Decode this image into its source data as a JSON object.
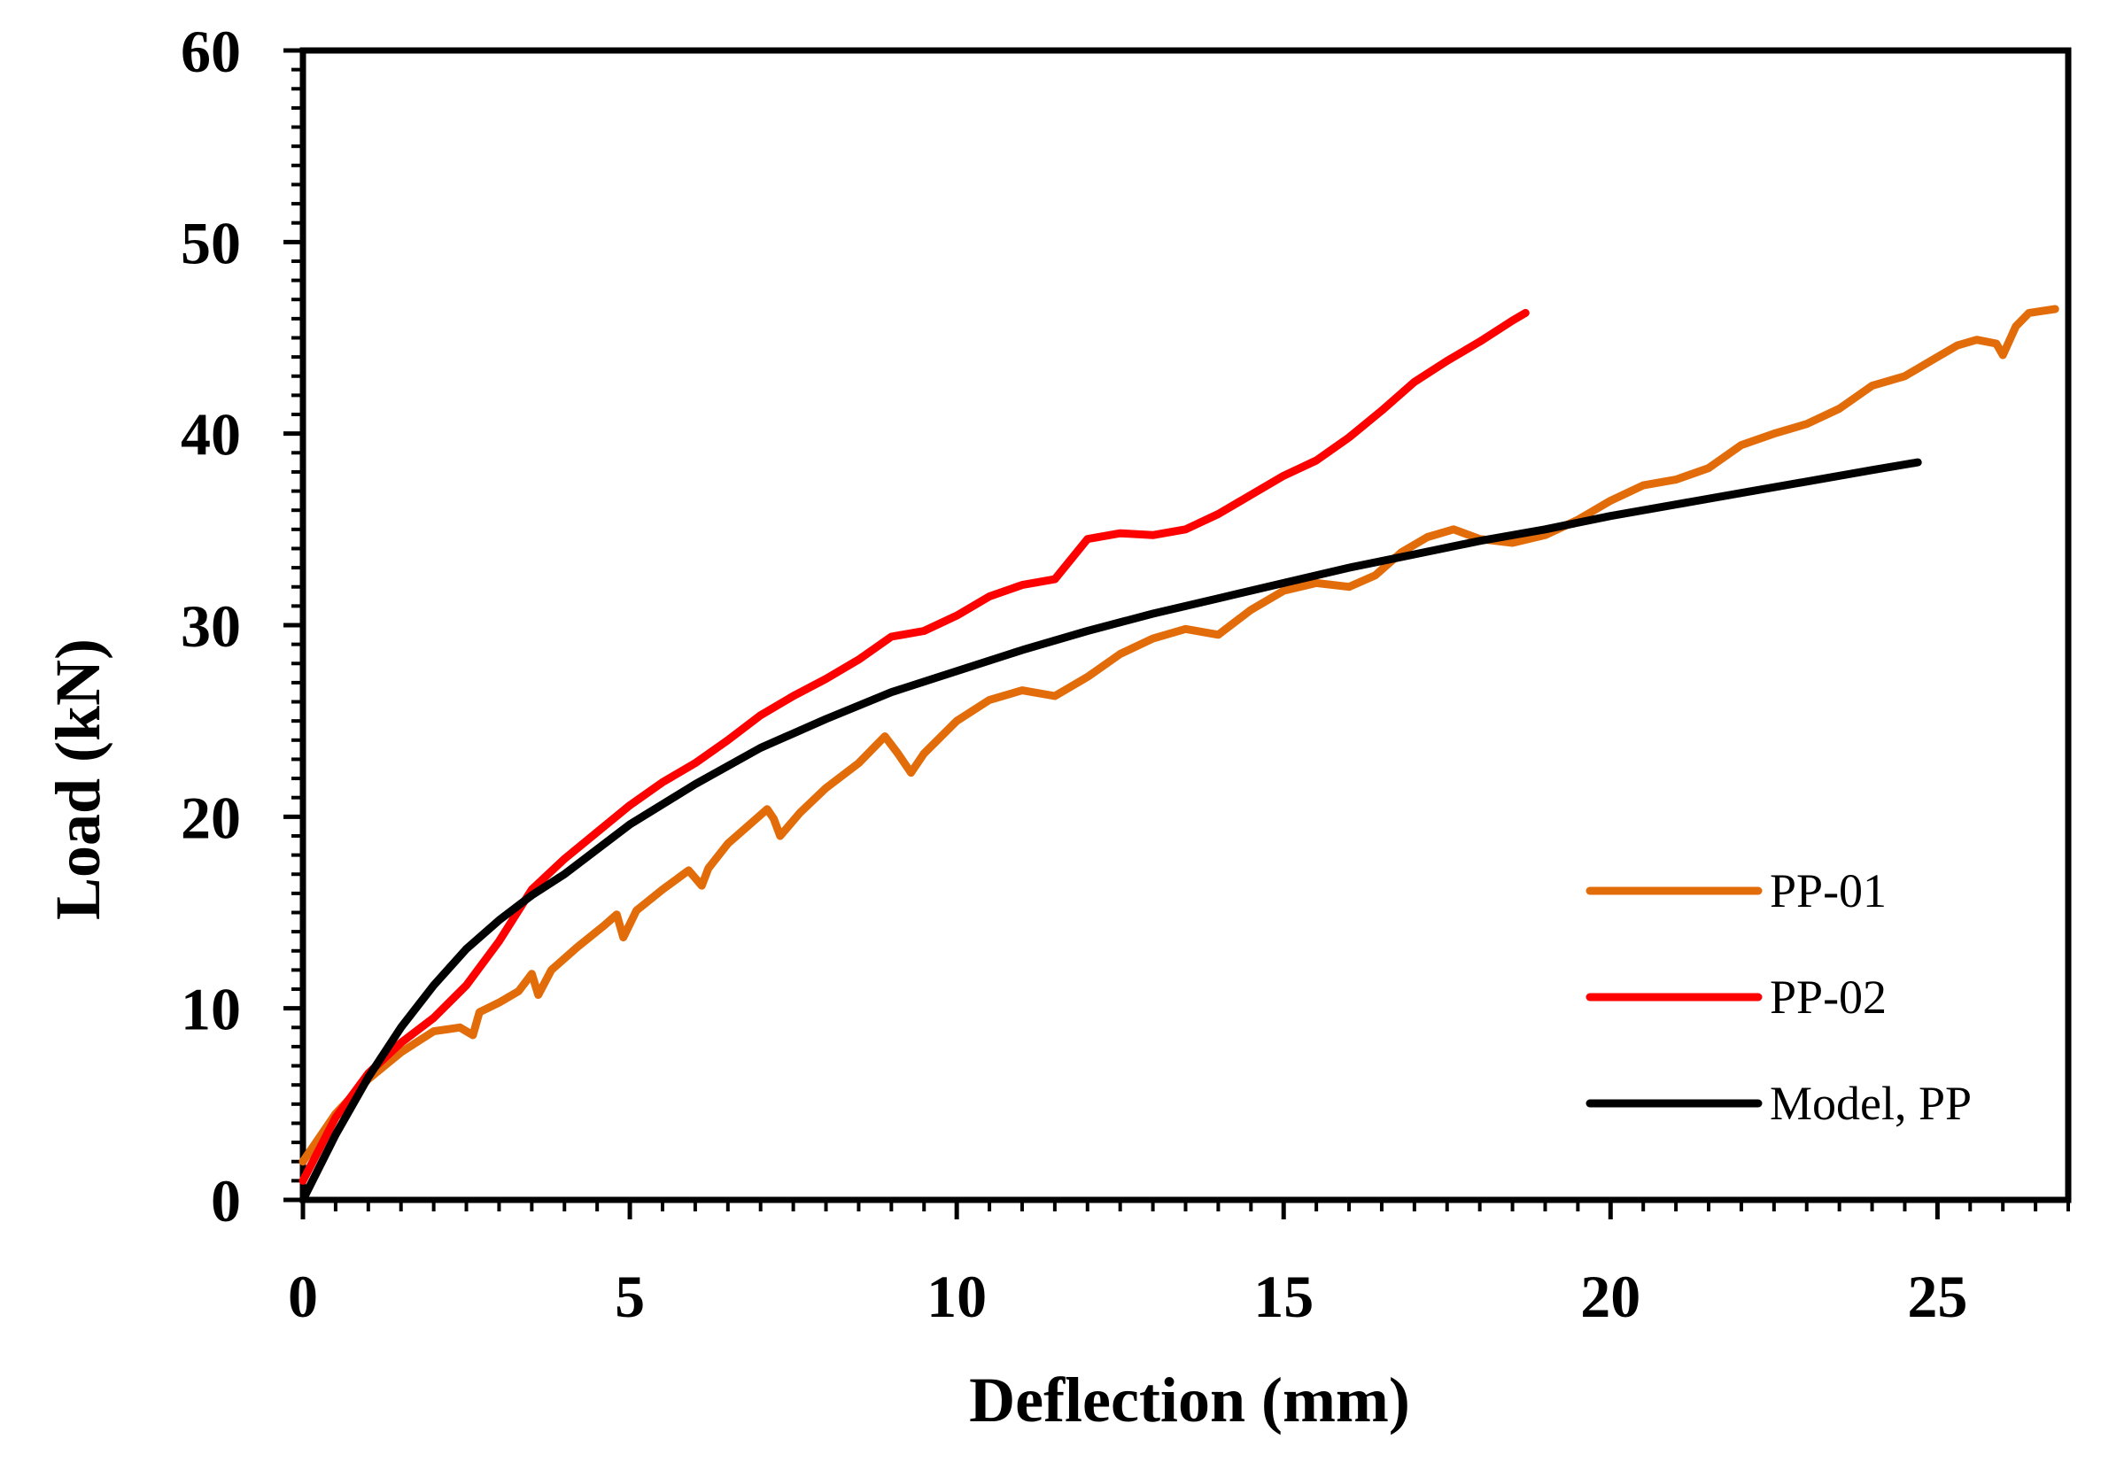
{
  "chart_data": {
    "type": "line",
    "title": "",
    "xlabel": "Deflection (mm)",
    "ylabel": "Load (kN)",
    "xlim": [
      0,
      27
    ],
    "ylim": [
      0,
      60
    ],
    "xticks": [
      0,
      5,
      10,
      15,
      20,
      25
    ],
    "yticks": [
      0,
      10,
      20,
      30,
      40,
      50,
      60
    ],
    "x_minor_step": 0.5,
    "y_minor_step": 1,
    "grid": false,
    "legend_position": "right, lower-middle",
    "series": [
      {
        "name": "PP-01",
        "color": "#E36C0A",
        "x": [
          0,
          0.5,
          1,
          1.5,
          2,
          2.4,
          2.6,
          2.7,
          3,
          3.3,
          3.5,
          3.6,
          3.8,
          4.2,
          4.6,
          4.8,
          4.9,
          5.1,
          5.5,
          5.9,
          6.1,
          6.2,
          6.5,
          6.9,
          7.1,
          7.2,
          7.3,
          7.6,
          8,
          8.5,
          8.9,
          9.1,
          9.3,
          9.5,
          10,
          10.5,
          11,
          11.5,
          12,
          12.5,
          13,
          13.5,
          14,
          14.5,
          15,
          15.5,
          16,
          16.4,
          16.8,
          17.2,
          17.6,
          18,
          18.5,
          19,
          19.5,
          20,
          20.5,
          21,
          21.5,
          22,
          22.5,
          23,
          23.5,
          24,
          24.5,
          25,
          25.3,
          25.6,
          25.9,
          26,
          26.2,
          26.4,
          26.6,
          26.8
        ],
        "y": [
          2,
          4.5,
          6.3,
          7.7,
          8.8,
          9,
          8.6,
          9.8,
          10.3,
          10.9,
          11.8,
          10.7,
          12,
          13.2,
          14.3,
          14.9,
          13.7,
          15.1,
          16.2,
          17.2,
          16.4,
          17.3,
          18.6,
          19.8,
          20.4,
          19.9,
          19,
          20.2,
          21.5,
          22.8,
          24.2,
          23.3,
          22.3,
          23.3,
          25,
          26.1,
          26.6,
          26.3,
          27.3,
          28.5,
          29.3,
          29.8,
          29.5,
          30.8,
          31.8,
          32.2,
          32,
          32.6,
          33.8,
          34.6,
          35,
          34.5,
          34.3,
          34.7,
          35.5,
          36.5,
          37.3,
          37.6,
          38.2,
          39.4,
          40,
          40.5,
          41.3,
          42.5,
          43,
          44,
          44.6,
          44.9,
          44.7,
          44.1,
          45.6,
          46.3,
          46.4,
          46.5
        ]
      },
      {
        "name": "PP-02",
        "color": "#FF0000",
        "x": [
          0,
          0.5,
          1,
          1.5,
          2,
          2.5,
          3,
          3.5,
          4,
          4.5,
          5,
          5.5,
          6,
          6.5,
          7,
          7.5,
          8,
          8.5,
          9,
          9.5,
          10,
          10.5,
          11,
          11.5,
          12,
          12.5,
          13,
          13.5,
          14,
          14.5,
          15,
          15.5,
          16,
          16.5,
          17,
          17.5,
          18,
          18.5,
          18.7
        ],
        "y": [
          1,
          4.3,
          6.6,
          8.2,
          9.5,
          11.2,
          13.5,
          16.2,
          17.8,
          19.2,
          20.6,
          21.8,
          22.8,
          24,
          25.3,
          26.3,
          27.2,
          28.2,
          29.4,
          29.7,
          30.5,
          31.5,
          32.1,
          32.4,
          34.5,
          34.8,
          34.7,
          35,
          35.8,
          36.8,
          37.8,
          38.6,
          39.8,
          41.2,
          42.7,
          43.8,
          44.8,
          45.9,
          46.3
        ]
      },
      {
        "name": "Model, PP",
        "color": "#000000",
        "x": [
          0,
          0.5,
          1,
          1.5,
          2,
          2.5,
          3,
          3.5,
          4,
          5,
          6,
          7,
          8,
          9,
          10,
          11,
          12,
          13,
          14,
          15,
          16,
          17,
          18,
          19,
          20,
          21,
          22,
          23,
          24,
          24.7
        ],
        "y": [
          0,
          3.4,
          6.4,
          9,
          11.2,
          13.1,
          14.6,
          15.9,
          17,
          19.6,
          21.7,
          23.6,
          25.1,
          26.5,
          27.6,
          28.7,
          29.7,
          30.6,
          31.4,
          32.2,
          33,
          33.7,
          34.4,
          35,
          35.7,
          36.3,
          36.9,
          37.5,
          38.1,
          38.5
        ]
      }
    ]
  }
}
